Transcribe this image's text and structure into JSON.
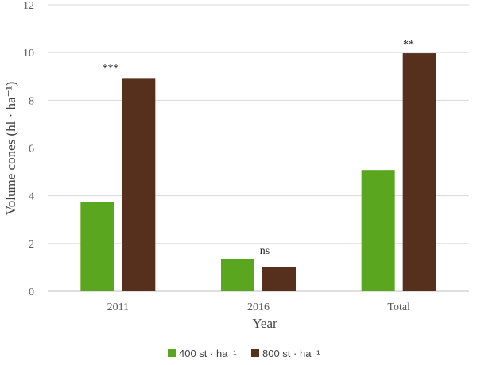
{
  "chart_data": {
    "type": "bar",
    "title": "",
    "xlabel": "Year",
    "ylabel": "Volume cones (hl · ha⁻¹)",
    "categories": [
      "2011",
      "2016",
      "Total"
    ],
    "series": [
      {
        "name": "400 st · ha⁻¹",
        "color": "#5ba61f",
        "values": [
          3.75,
          1.33,
          5.08
        ]
      },
      {
        "name": "800 st · ha⁻¹",
        "color": "#56301c",
        "values": [
          8.93,
          1.03,
          9.97
        ]
      }
    ],
    "significance": [
      "***",
      "ns",
      "**"
    ],
    "ylim": [
      0,
      12
    ],
    "yticks": [
      0,
      2,
      4,
      6,
      8,
      10,
      12
    ],
    "grid": true,
    "legend_position": "bottom"
  }
}
